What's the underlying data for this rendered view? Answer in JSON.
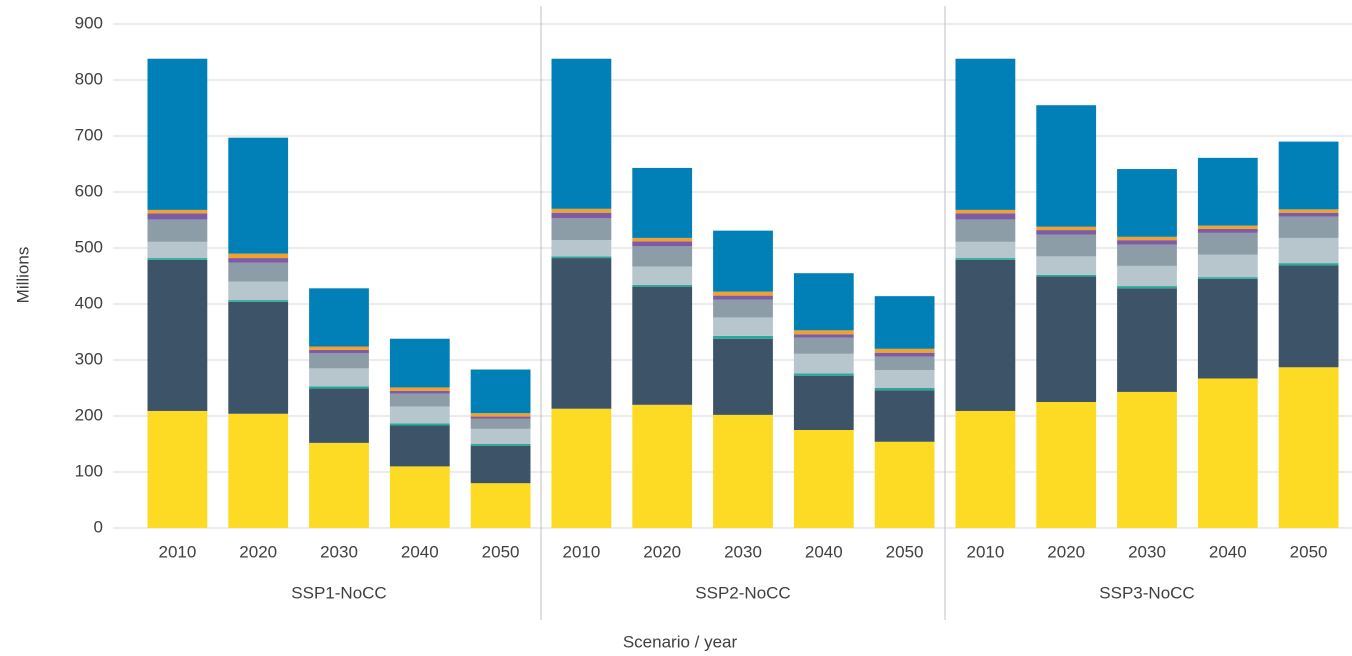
{
  "chart_data": {
    "type": "stacked-bar",
    "x_label": "Scenario / year",
    "y_label": "Millions",
    "categories": [
      "2010",
      "2020",
      "2030",
      "2040",
      "2050",
      "2010",
      "2020",
      "2030",
      "2040",
      "2050",
      "2010",
      "2020",
      "2030",
      "2040",
      "2050"
    ],
    "groups": [
      "SSP1-NoCC",
      "SSP2-NoCC",
      "SSP3-NoCC"
    ],
    "ylim": [
      0,
      900
    ],
    "yticks": [
      0,
      100,
      200,
      300,
      400,
      500,
      600,
      700,
      800,
      900
    ],
    "grid": true,
    "series": [
      {
        "color": "#fdda24",
        "values": [
          209,
          204,
          152,
          110,
          80,
          213,
          220,
          202,
          175,
          154,
          209,
          225,
          243,
          267,
          287
        ]
      },
      {
        "color": "#3d5468",
        "values": [
          270,
          200,
          97,
          73,
          67,
          269,
          211,
          136,
          97,
          92,
          270,
          224,
          185,
          178,
          182
        ]
      },
      {
        "color": "#2aa99a",
        "values": [
          3,
          3,
          4,
          4,
          3,
          3,
          3,
          5,
          4,
          4,
          3,
          3,
          4,
          3,
          4
        ]
      },
      {
        "color": "#b7c6cd",
        "values": [
          29,
          33,
          32,
          30,
          27,
          29,
          33,
          33,
          35,
          32,
          29,
          33,
          36,
          40,
          45
        ]
      },
      {
        "color": "#8c9da7",
        "values": [
          40,
          34,
          27,
          23,
          18,
          39,
          36,
          32,
          29,
          24,
          40,
          39,
          38,
          39,
          38
        ]
      },
      {
        "color": "#7d5ba6",
        "values": [
          11,
          8,
          6,
          5,
          4,
          10,
          9,
          7,
          6,
          7,
          11,
          8,
          8,
          7,
          7
        ]
      },
      {
        "color": "#f2a12c",
        "values": [
          6,
          8,
          6,
          6,
          6,
          7,
          6,
          7,
          7,
          7,
          6,
          6,
          6,
          6,
          6
        ]
      },
      {
        "color": "#0080b7",
        "values": [
          270,
          207,
          104,
          87,
          78,
          268,
          125,
          109,
          102,
          94,
          270,
          217,
          121,
          121,
          121
        ]
      }
    ]
  }
}
